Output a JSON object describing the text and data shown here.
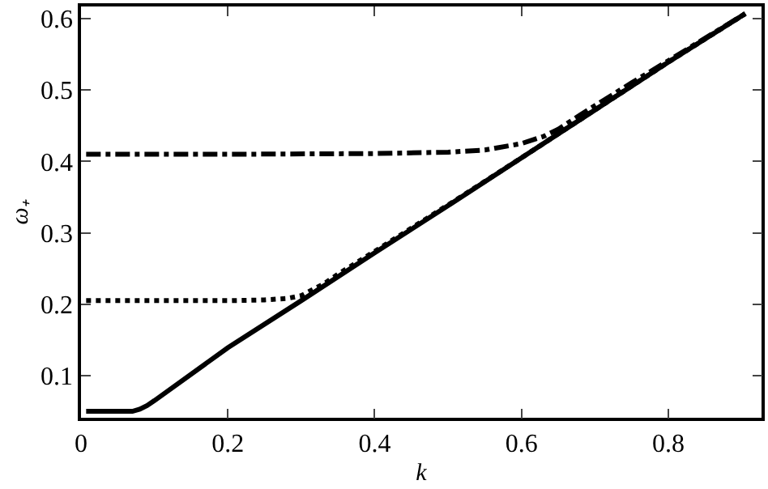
{
  "chart_data": {
    "type": "line",
    "xlabel": "k",
    "ylabel": "ω₊",
    "xlim": [
      0,
      0.927
    ],
    "ylim": [
      0.041,
      0.617
    ],
    "xticks": [
      0,
      0.2,
      0.4,
      0.6,
      0.8
    ],
    "yticks": [
      0.1,
      0.2,
      0.3,
      0.4,
      0.5,
      0.6
    ],
    "grid": false,
    "marker": "none",
    "series": [
      {
        "color": "#000000",
        "line_style": "solid",
        "x": [
          0.007,
          0.04,
          0.07,
          0.08,
          0.09,
          0.1,
          0.2,
          0.3,
          0.4,
          0.5,
          0.6,
          0.7,
          0.8,
          0.905
        ],
        "values": [
          0.05,
          0.05,
          0.05,
          0.053,
          0.058,
          0.065,
          0.139,
          0.205,
          0.272,
          0.338,
          0.405,
          0.472,
          0.539,
          0.607
        ]
      },
      {
        "color": "#000000",
        "line_style": "dotted",
        "x": [
          0.007,
          0.1,
          0.2,
          0.25,
          0.28,
          0.3,
          0.33,
          0.35,
          0.4,
          0.5,
          0.6,
          0.7,
          0.8,
          0.905
        ],
        "values": [
          0.205,
          0.205,
          0.205,
          0.206,
          0.208,
          0.212,
          0.228,
          0.242,
          0.274,
          0.339,
          0.405,
          0.472,
          0.539,
          0.607
        ]
      },
      {
        "color": "#000000",
        "line_style": "dashdot",
        "x": [
          0.007,
          0.2,
          0.4,
          0.5,
          0.55,
          0.6,
          0.63,
          0.65,
          0.68,
          0.7,
          0.75,
          0.8,
          0.905
        ],
        "values": [
          0.41,
          0.41,
          0.411,
          0.413,
          0.416,
          0.425,
          0.435,
          0.445,
          0.465,
          0.478,
          0.51,
          0.541,
          0.607
        ]
      }
    ]
  }
}
